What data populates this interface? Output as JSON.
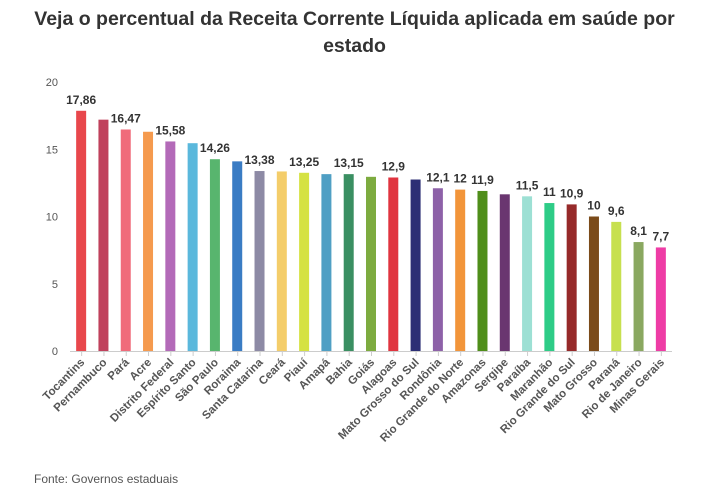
{
  "title_line1": "Veja o percentual da Receita Corrente Líquida aplicada em saúde por",
  "title_line2": "estado",
  "source": "Fonte: Governos estaduais",
  "chart_data": {
    "type": "bar",
    "title": "Veja o percentual da Receita Corrente Líquida aplicada em saúde por estado",
    "xlabel": "",
    "ylabel": "",
    "ylim": [
      0,
      20
    ],
    "yticks": [
      0,
      5,
      10,
      15,
      20
    ],
    "grid": false,
    "categories": [
      "Tocantins",
      "Pernambuco",
      "Pará",
      "Acre",
      "Distrito Federal",
      "Espírito Santo",
      "São Paulo",
      "Roraima",
      "Santa Catarina",
      "Ceará",
      "Piauí",
      "Amapá",
      "Bahia",
      "Goiás",
      "Alagoas",
      "Mato Grosso do Sul",
      "Rondônia",
      "Rio Grande do Norte",
      "Amazonas",
      "Sergipe",
      "Paraíba",
      "Maranhão",
      "Rio Grande do Sul",
      "Mato Grosso",
      "Paraná",
      "Rio de Janeiro",
      "Minas Gerais"
    ],
    "values": [
      17.86,
      17.2,
      16.47,
      16.3,
      15.58,
      15.45,
      14.26,
      14.1,
      13.38,
      13.35,
      13.25,
      13.15,
      13.15,
      12.95,
      12.9,
      12.75,
      12.1,
      12.0,
      11.9,
      11.65,
      11.5,
      11.0,
      10.9,
      10.0,
      9.6,
      8.1,
      7.7
    ],
    "data_labels": [
      "17,86",
      "",
      "16,47",
      "",
      "15,58",
      "",
      "14,26",
      "",
      "13,38",
      "",
      "13,25",
      "",
      "13,15",
      "",
      "12,9",
      "",
      "12,1",
      "12",
      "11,9",
      "",
      "11,5",
      "11",
      "10,9",
      "10",
      "9,6",
      "8,1",
      "7,7"
    ],
    "colors": [
      "#e8474c",
      "#c0415c",
      "#f06b7a",
      "#f59a4e",
      "#b36ab8",
      "#5ab8dc",
      "#58b56e",
      "#3a7cc4",
      "#8d8aa5",
      "#f4cd6a",
      "#d5e242",
      "#4f9fc4",
      "#3a8f62",
      "#7dab3f",
      "#e0343f",
      "#2c2f75",
      "#8d61a8",
      "#f2953a",
      "#4f8e1a",
      "#6a3670",
      "#9de0d4",
      "#2ecc87",
      "#962a2a",
      "#7b4b1a",
      "#c7e04f",
      "#8aa860",
      "#ee3ca5"
    ]
  }
}
